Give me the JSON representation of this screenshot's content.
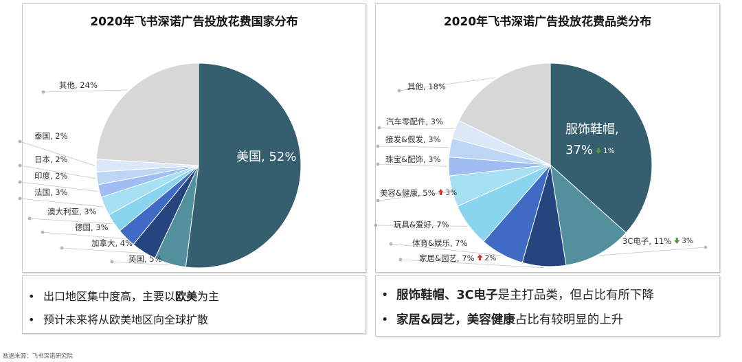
{
  "chart_data": [
    {
      "type": "pie",
      "title": "2020年飞书深诺广告投放花费国家分布",
      "slices": [
        {
          "name": "美国",
          "value": 52,
          "label": "美国, 52%",
          "color": "#355F6F"
        },
        {
          "name": "英国",
          "value": 5,
          "label": "英国, 5%",
          "color": "#52909E"
        },
        {
          "name": "加拿大",
          "value": 4,
          "label": "加拿大, 4%",
          "color": "#26457E"
        },
        {
          "name": "德国",
          "value": 3,
          "label": "德国, 3%",
          "color": "#3F6BC5"
        },
        {
          "name": "澳大利亚",
          "value": 3,
          "label": "澳大利亚, 3%",
          "color": "#89D4EF"
        },
        {
          "name": "法国",
          "value": 3,
          "label": "法国, 3%",
          "color": "#A6E0F2"
        },
        {
          "name": "印度",
          "value": 2,
          "label": "印度, 2%",
          "color": "#9FBDF2"
        },
        {
          "name": "日本",
          "value": 2,
          "label": "日本, 2%",
          "color": "#BDD6F5"
        },
        {
          "name": "泰国",
          "value": 2,
          "label": "泰国, 2%",
          "color": "#DCE8F8"
        },
        {
          "name": "其他",
          "value": 24,
          "label": "其他, 24%",
          "color": "#D7D7D7"
        }
      ]
    },
    {
      "type": "pie",
      "title": "2020年飞书深诺广告投放花费品类分布",
      "slices": [
        {
          "name": "服饰鞋帽",
          "value": 37,
          "label": "服饰鞋帽,",
          "label2": "37%",
          "change": "1%",
          "trend": "down",
          "color": "#355F6F"
        },
        {
          "name": "3C电子",
          "value": 11,
          "label": "3C电子, 11%",
          "change": "3%",
          "trend": "down",
          "color": "#52909E"
        },
        {
          "name": "家居&园艺",
          "value": 7,
          "label": "家居&园艺, 7%",
          "change": "2%",
          "trend": "up",
          "color": "#26457E"
        },
        {
          "name": "体育&娱乐",
          "value": 7,
          "label": "体育&娱乐, 7%",
          "color": "#3F6BC5"
        },
        {
          "name": "玩具&爱好",
          "value": 7,
          "label": "玩具&爱好, 7%",
          "color": "#89D4EF"
        },
        {
          "name": "美容&健康",
          "value": 5,
          "label": "美容&健康, 5%",
          "change": "3%",
          "trend": "up",
          "color": "#A6E0F2"
        },
        {
          "name": "珠宝&配饰",
          "value": 3,
          "label": "珠宝&配饰, 3%",
          "color": "#9FBDF2"
        },
        {
          "name": "接发&假发",
          "value": 3,
          "label": "接发&假发, 3%",
          "color": "#BDD6F5"
        },
        {
          "name": "汽车零配件",
          "value": 3,
          "label": "汽车零配件, 3%",
          "color": "#DCE8F8"
        },
        {
          "name": "其他",
          "value": 18,
          "label": "其他, 18%",
          "color": "#D7D7D7"
        }
      ]
    }
  ],
  "notes_left": [
    {
      "pre": "出口地区集中度高，主要以",
      "bold": "欧美",
      "post": "为主"
    },
    {
      "pre": "预计未来将从欧美地区向全球扩散",
      "bold": "",
      "post": ""
    }
  ],
  "notes_right": [
    {
      "bold1": "服饰鞋帽、3C电子",
      "text1": "是主打品类，但占比有所下降"
    },
    {
      "bold1": "家居&园艺，美容健康",
      "text1": "占比有较明显的上升"
    }
  ],
  "bullet": "•",
  "source": "数据来源：飞书深诺研究院",
  "trend_colors": {
    "up": "#E0302A",
    "down": "#4E9A3A"
  }
}
